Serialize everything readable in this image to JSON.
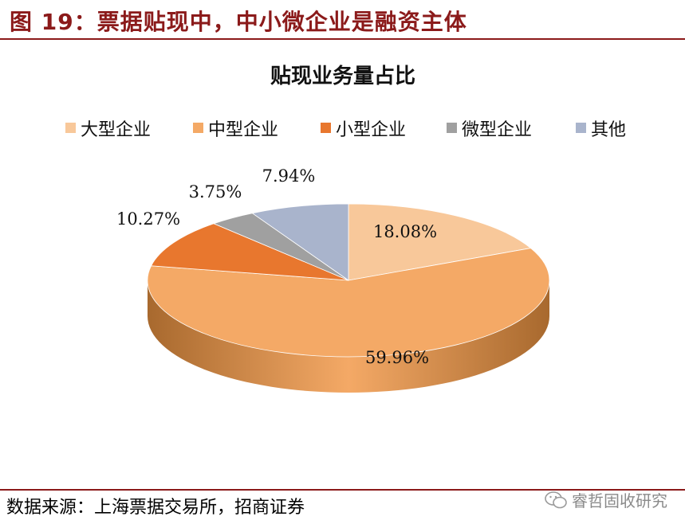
{
  "figure": {
    "title": "图 19：票据贴现中，中小微企业是融资主体",
    "source": "数据来源：上海票据交易所，招商证券",
    "watermark": "睿哲固收研究",
    "title_color": "#8b1a1a"
  },
  "chart_data": {
    "type": "pie",
    "title": "贴现业务量占比",
    "legend_position": "top",
    "unit": "%",
    "categories": [
      "大型企业",
      "中型企业",
      "小型企业",
      "微型企业",
      "其他"
    ],
    "values": [
      18.08,
      59.96,
      10.27,
      3.75,
      7.94
    ],
    "labels": [
      "18.08%",
      "59.96%",
      "10.27%",
      "3.75%",
      "7.94%"
    ],
    "colors": [
      "#f8c89a",
      "#f4a966",
      "#e8772e",
      "#a0a0a0",
      "#a9b4cc"
    ],
    "side_colors": [
      "#c58c52",
      "#a8692e",
      "#a64e16",
      "#707070",
      "#7a859c"
    ]
  }
}
